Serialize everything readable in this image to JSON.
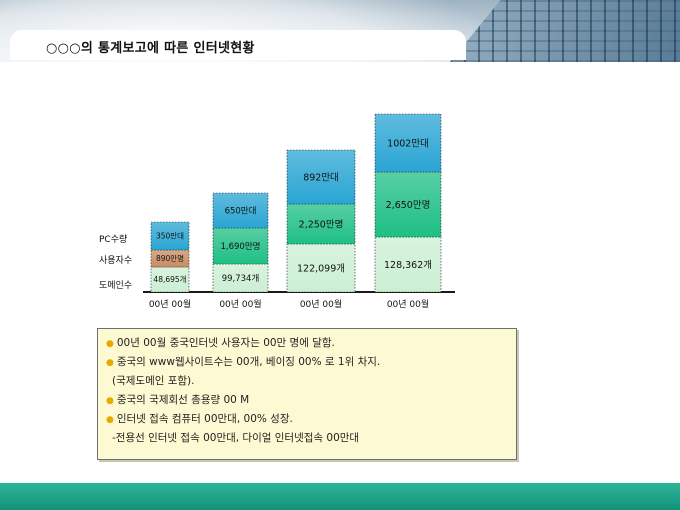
{
  "header": {
    "title": "○○○의 통계보고에 따른 인터넷현황"
  },
  "chart": {
    "row_labels": [
      "PC수량",
      "사용자수",
      "도메인수"
    ],
    "bars": [
      {
        "x_label": "00년 00월",
        "segments": [
          {
            "label": "48,695개",
            "color": "#ccefd4"
          },
          {
            "label": "890만명",
            "color": "#c98d62"
          },
          {
            "label": "350만대",
            "color": "#2aa5d3"
          }
        ]
      },
      {
        "x_label": "00년 00월",
        "segments": [
          {
            "label": "99,734개",
            "color": "#ccefd4"
          },
          {
            "label": "1,690만명",
            "color": "#1fbf86"
          },
          {
            "label": "650만대",
            "color": "#2aa5d3"
          }
        ]
      },
      {
        "x_label": "00년 00월",
        "segments": [
          {
            "label": "122,099개",
            "color": "#ccefd4"
          },
          {
            "label": "2,250만명",
            "color": "#1fbf86"
          },
          {
            "label": "892만대",
            "color": "#2aa5d3"
          }
        ]
      },
      {
        "x_label": "00년 00월",
        "segments": [
          {
            "label": "128,362개",
            "color": "#ccefd4"
          },
          {
            "label": "2,650만명",
            "color": "#1fbf86"
          },
          {
            "label": "1002만대",
            "color": "#2aa5d3"
          }
        ]
      }
    ]
  },
  "notes": {
    "line1": "00년 00월 중국인터넷 사용자는 00만 명에 달함.",
    "line2": "중국의 www웹사이트수는 00개, 베이징 00% 로 1위 차지.",
    "line3": "(국제도메인 포함).",
    "line4": "중국의 국제회선 총용량 00 M",
    "line5": "인터넷 접속 컴퓨터 00만대, 00% 성장.",
    "line6": "-전용선 인터넷 접속 00만대, 다이얼 인터넷접속 00만대"
  },
  "colors": {
    "footer": "#13917a",
    "bullet": "#e8a800",
    "note_background": "#fdf9d2"
  }
}
